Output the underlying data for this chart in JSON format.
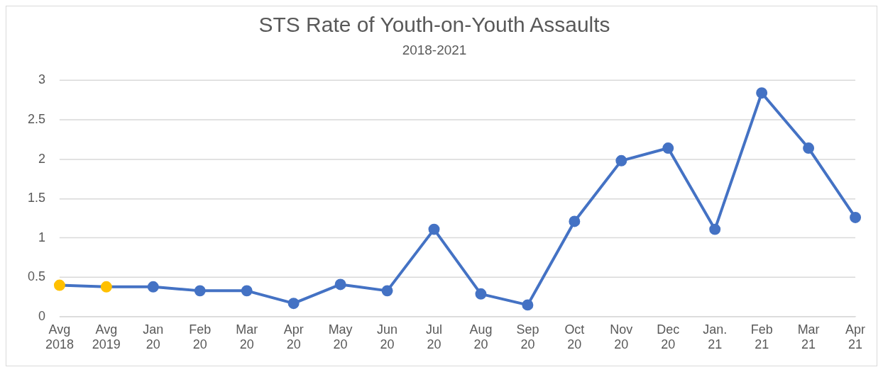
{
  "chart_data": {
    "type": "line",
    "title": "STS Rate of Youth-on-Youth Assaults",
    "subtitle": "2018-2021",
    "categories": [
      "Avg 2018",
      "Avg 2019",
      "Jan 20",
      "Feb 20",
      "Mar 20",
      "Apr 20",
      "May 20",
      "Jun 20",
      "Jul 20",
      "Aug 20",
      "Sep 20",
      "Oct 20",
      "Nov 20",
      "Dec 20",
      "Jan. 21",
      "Feb 21",
      "Mar 21",
      "Apr 21"
    ],
    "series": [
      {
        "color": "#4472c4",
        "colors": [
          "#ffc000",
          "#ffc000",
          "#4472c4",
          "#4472c4",
          "#4472c4",
          "#4472c4",
          "#4472c4",
          "#4472c4",
          "#4472c4",
          "#4472c4",
          "#4472c4",
          "#4472c4",
          "#4472c4",
          "#4472c4",
          "#4472c4",
          "#4472c4",
          "#4472c4",
          "#4472c4"
        ],
        "values": [
          0.4,
          0.38,
          0.38,
          0.33,
          0.33,
          0.17,
          0.41,
          0.33,
          1.11,
          0.29,
          0.15,
          1.21,
          1.98,
          2.14,
          1.11,
          2.84,
          2.14,
          1.26
        ]
      }
    ],
    "ylim": [
      0,
      3
    ],
    "yticks": [
      0,
      0.5,
      1,
      1.5,
      2,
      2.5,
      3
    ],
    "grid": "y",
    "legend": false,
    "marker": "circle",
    "line_style": "solid"
  }
}
